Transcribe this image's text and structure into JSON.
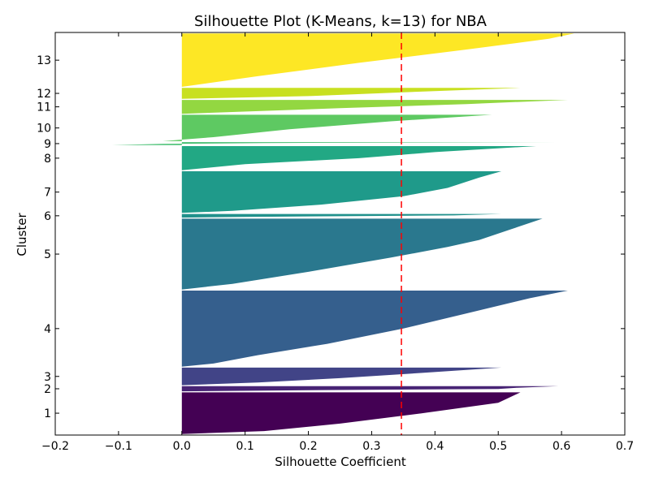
{
  "chart_data": {
    "type": "silhouette",
    "title": "Silhouette Plot (K-Means, k=13) for NBA",
    "xlabel": "Silhouette Coefficient",
    "ylabel": "Cluster",
    "xlim": [
      -0.2,
      0.7
    ],
    "xticks": [
      -0.2,
      -0.1,
      0.0,
      0.1,
      0.2,
      0.3,
      0.4,
      0.5,
      0.6,
      0.7
    ],
    "xtick_labels": [
      "−0.2",
      "−0.1",
      "0.0",
      "0.1",
      "0.2",
      "0.3",
      "0.4",
      "0.5",
      "0.6",
      "0.7"
    ],
    "average_silhouette": 0.347,
    "average_line_color": "#ff0000",
    "grid": false,
    "clusters": [
      {
        "label": "1",
        "color": "#440154",
        "size": 57,
        "max": 0.535,
        "min": -0.035,
        "profile": [
          [
            0.0,
            0.535
          ],
          [
            0.25,
            0.5
          ],
          [
            0.5,
            0.38
          ],
          [
            0.75,
            0.25
          ],
          [
            0.93,
            0.13
          ],
          [
            1.0,
            0.0
          ]
        ]
      },
      {
        "label": "2",
        "color": "#482475",
        "size": 7,
        "max": 0.595,
        "min": -0.05,
        "profile": [
          [
            0.0,
            0.595
          ],
          [
            0.3,
            0.53
          ],
          [
            0.55,
            0.5
          ],
          [
            0.75,
            0.22
          ],
          [
            1.0,
            0.0
          ]
        ]
      },
      {
        "label": "3",
        "color": "#414487",
        "size": 24,
        "max": 0.505,
        "min": 0.0,
        "profile": [
          [
            0.0,
            0.505
          ],
          [
            0.3,
            0.38
          ],
          [
            0.6,
            0.25
          ],
          [
            0.85,
            0.12
          ],
          [
            1.0,
            0.0
          ]
        ]
      },
      {
        "label": "4",
        "color": "#355f8d",
        "size": 104,
        "max": 0.61,
        "min": 0.0,
        "profile": [
          [
            0.0,
            0.61
          ],
          [
            0.1,
            0.55
          ],
          [
            0.3,
            0.45
          ],
          [
            0.5,
            0.35
          ],
          [
            0.7,
            0.23
          ],
          [
            0.85,
            0.12
          ],
          [
            0.96,
            0.05
          ],
          [
            1.0,
            0.0
          ]
        ]
      },
      {
        "label": "5",
        "color": "#2a788e",
        "size": 97,
        "max": 0.57,
        "min": 0.0,
        "profile": [
          [
            0.0,
            0.57
          ],
          [
            0.15,
            0.52
          ],
          [
            0.3,
            0.47
          ],
          [
            0.4,
            0.42
          ],
          [
            0.55,
            0.33
          ],
          [
            0.75,
            0.2
          ],
          [
            0.92,
            0.08
          ],
          [
            1.0,
            0.0
          ]
        ]
      },
      {
        "label": "6",
        "color": "#21918c",
        "size": 5,
        "max": 0.505,
        "min": 0.0,
        "profile": [
          [
            0.0,
            0.505
          ],
          [
            0.4,
            0.43
          ],
          [
            0.8,
            0.1
          ],
          [
            1.0,
            0.0
          ]
        ]
      },
      {
        "label": "7",
        "color": "#1f9a8a",
        "size": 57,
        "max": 0.505,
        "min": 0.0,
        "profile": [
          [
            0.0,
            0.505
          ],
          [
            0.15,
            0.47
          ],
          [
            0.4,
            0.42
          ],
          [
            0.6,
            0.35
          ],
          [
            0.8,
            0.22
          ],
          [
            0.95,
            0.08
          ],
          [
            1.0,
            0.0
          ]
        ]
      },
      {
        "label": "8",
        "color": "#22a884",
        "size": 33,
        "max": 0.56,
        "min": 0.0,
        "profile": [
          [
            0.0,
            0.56
          ],
          [
            0.25,
            0.4
          ],
          [
            0.5,
            0.28
          ],
          [
            0.75,
            0.1
          ],
          [
            1.0,
            0.0
          ]
        ]
      },
      {
        "label": "9",
        "color": "#44bf70",
        "size": 4,
        "max": 0.595,
        "min": -0.11,
        "profile": [
          [
            0.0,
            0.595
          ],
          [
            0.3,
            0.13
          ],
          [
            0.6,
            -0.03
          ],
          [
            1.0,
            -0.11
          ]
        ]
      },
      {
        "label": "10",
        "color": "#5ec962",
        "size": 36,
        "max": 0.49,
        "min": -0.03,
        "profile": [
          [
            0.0,
            0.49
          ],
          [
            0.25,
            0.33
          ],
          [
            0.55,
            0.17
          ],
          [
            0.85,
            0.05
          ],
          [
            1.0,
            -0.03
          ]
        ]
      },
      {
        "label": "11",
        "color": "#93d741",
        "size": 19,
        "max": 0.61,
        "min": 0.0,
        "profile": [
          [
            0.0,
            0.61
          ],
          [
            0.3,
            0.45
          ],
          [
            0.6,
            0.25
          ],
          [
            1.0,
            0.0
          ]
        ]
      },
      {
        "label": "12",
        "color": "#c8e020",
        "size": 15,
        "max": 0.535,
        "min": 0.0,
        "profile": [
          [
            0.0,
            0.535
          ],
          [
            0.4,
            0.35
          ],
          [
            0.75,
            0.2
          ],
          [
            1.0,
            0.0
          ]
        ]
      },
      {
        "label": "13",
        "color": "#fde725",
        "size": 73,
        "max": 0.62,
        "min": 0.0,
        "profile": [
          [
            0.0,
            0.62
          ],
          [
            0.1,
            0.58
          ],
          [
            0.3,
            0.45
          ],
          [
            0.55,
            0.28
          ],
          [
            0.8,
            0.12
          ],
          [
            1.0,
            0.0
          ]
        ]
      }
    ]
  }
}
